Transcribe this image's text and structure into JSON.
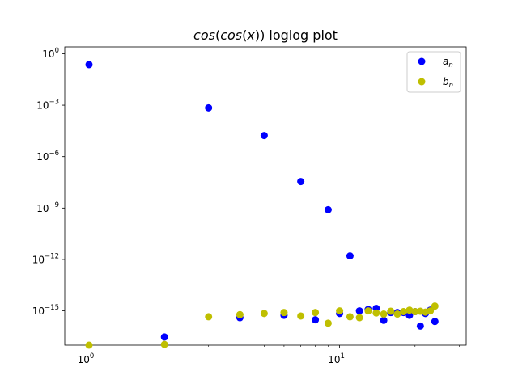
{
  "chart_data": {
    "type": "scatter",
    "title": "cos(cos(x)) loglog plot",
    "xscale": "log",
    "yscale": "log",
    "xlim": [
      0.8,
      32
    ],
    "ylim": [
      1e-17,
      2.5
    ],
    "xticks": [
      {
        "value": 1,
        "base": "10",
        "exp": "0"
      },
      {
        "value": 10,
        "base": "10",
        "exp": "1"
      }
    ],
    "yticks": [
      {
        "value": 1,
        "base": "10",
        "exp": "0"
      },
      {
        "value": 0.001,
        "base": "10",
        "exp": "−3"
      },
      {
        "value": 1e-06,
        "base": "10",
        "exp": "−6"
      },
      {
        "value": 1e-09,
        "base": "10",
        "exp": "−9"
      },
      {
        "value": 1e-12,
        "base": "10",
        "exp": "−12"
      },
      {
        "value": 1e-15,
        "base": "10",
        "exp": "−15"
      }
    ],
    "legend_position": "top-right",
    "series": [
      {
        "name": "a_n",
        "label_main": "a",
        "label_sub": "n",
        "color": "#0000ff",
        "x": [
          1,
          2,
          3,
          4,
          5,
          6,
          7,
          8,
          9,
          10,
          11,
          12,
          13,
          14,
          15,
          16,
          17,
          18,
          19,
          20,
          21,
          22,
          23,
          24
        ],
        "y": [
          0.23,
          3e-17,
          0.0007,
          4e-16,
          1.7e-05,
          5.5e-16,
          3.5e-08,
          3e-16,
          8e-10,
          7e-16,
          1.6e-12,
          1e-15,
          1.2e-15,
          1.4e-15,
          2.8e-16,
          8e-16,
          8e-16,
          8e-16,
          5.5e-16,
          9e-16,
          1.3e-16,
          7e-16,
          1.1e-15,
          2.4e-16
        ]
      },
      {
        "name": "b_n",
        "label_main": "b",
        "label_sub": "n",
        "color": "#bfbf00",
        "x": [
          1,
          2,
          3,
          4,
          5,
          6,
          7,
          8,
          9,
          10,
          11,
          12,
          13,
          14,
          15,
          16,
          17,
          18,
          19,
          20,
          21,
          22,
          23,
          24
        ],
        "y": [
          1e-17,
          1.1e-17,
          4.5e-16,
          6e-16,
          7e-16,
          8e-16,
          5e-16,
          8e-16,
          1.9e-16,
          1e-15,
          4.5e-16,
          4e-16,
          1e-15,
          7.5e-16,
          6.5e-16,
          9.5e-16,
          6.5e-16,
          9e-16,
          1.1e-15,
          9e-16,
          9.5e-16,
          8.5e-16,
          1e-15,
          1.9e-15
        ]
      }
    ]
  }
}
